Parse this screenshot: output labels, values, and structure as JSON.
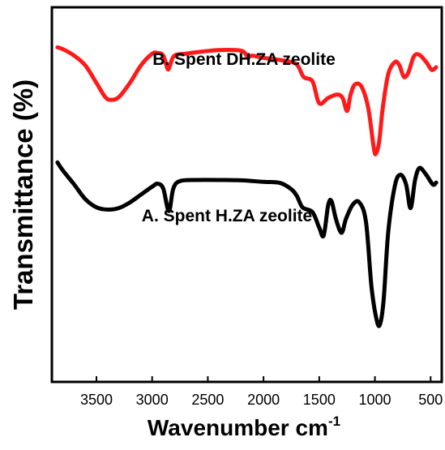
{
  "chart_data": {
    "type": "line",
    "title": "",
    "xlabel": "Wavenumber cm",
    "xlabel_sup": "-1",
    "ylabel": "Transmittance (%)",
    "x_reversed": true,
    "xlim": [
      3900,
      400
    ],
    "xticks": [
      3500,
      3000,
      2500,
      2000,
      1500,
      1000,
      500
    ],
    "xtick_labels": [
      "3500",
      "3000",
      "2500",
      "2000",
      "1500",
      "1000",
      "500"
    ],
    "y_ticks_shown": false,
    "ylim": [
      0,
      100
    ],
    "grid": false,
    "series": [
      {
        "name": "B. Spent DH.ZA zeolite",
        "color": "#ff1a1a",
        "points": [
          [
            3850,
            89.3
          ],
          [
            3800,
            88.8
          ],
          [
            3700,
            87.1
          ],
          [
            3600,
            84.5
          ],
          [
            3500,
            79.8
          ],
          [
            3420,
            76.0
          ],
          [
            3370,
            75.3
          ],
          [
            3300,
            76.0
          ],
          [
            3200,
            79.8
          ],
          [
            3100,
            84.5
          ],
          [
            3000,
            87.6
          ],
          [
            2950,
            87.8
          ],
          [
            2900,
            87.1
          ],
          [
            2860,
            83.5
          ],
          [
            2840,
            84.5
          ],
          [
            2800,
            87.1
          ],
          [
            2700,
            87.6
          ],
          [
            2600,
            88.0
          ],
          [
            2400,
            88.6
          ],
          [
            2200,
            88.4
          ],
          [
            2140,
            86.7
          ],
          [
            2100,
            87.1
          ],
          [
            2000,
            86.5
          ],
          [
            1800,
            85.7
          ],
          [
            1700,
            84.7
          ],
          [
            1640,
            81.4
          ],
          [
            1560,
            80.2
          ],
          [
            1500,
            74.4
          ],
          [
            1420,
            75.8
          ],
          [
            1340,
            76.7
          ],
          [
            1290,
            75.8
          ],
          [
            1250,
            72.3
          ],
          [
            1220,
            76.5
          ],
          [
            1180,
            79.4
          ],
          [
            1120,
            78.8
          ],
          [
            1060,
            73.1
          ],
          [
            1010,
            62.4
          ],
          [
            990,
            61.0
          ],
          [
            960,
            64.5
          ],
          [
            930,
            73.1
          ],
          [
            880,
            82.2
          ],
          [
            820,
            85.4
          ],
          [
            780,
            84.5
          ],
          [
            740,
            81.4
          ],
          [
            700,
            82.6
          ],
          [
            650,
            86.9
          ],
          [
            600,
            87.3
          ],
          [
            540,
            85.4
          ],
          [
            490,
            83.3
          ],
          [
            450,
            84.0
          ]
        ]
      },
      {
        "name": "A. Spent H.ZA zeolite",
        "color": "#000000",
        "points": [
          [
            3850,
            58.6
          ],
          [
            3800,
            56.4
          ],
          [
            3700,
            52.7
          ],
          [
            3600,
            48.8
          ],
          [
            3500,
            46.6
          ],
          [
            3400,
            46.0
          ],
          [
            3300,
            46.4
          ],
          [
            3200,
            47.9
          ],
          [
            3100,
            50.0
          ],
          [
            3000,
            52.1
          ],
          [
            2950,
            52.9
          ],
          [
            2900,
            51.6
          ],
          [
            2850,
            45.6
          ],
          [
            2810,
            51.6
          ],
          [
            2750,
            53.6
          ],
          [
            2600,
            53.9
          ],
          [
            2400,
            53.9
          ],
          [
            2200,
            53.8
          ],
          [
            2000,
            53.4
          ],
          [
            1850,
            53.1
          ],
          [
            1750,
            51.4
          ],
          [
            1700,
            49.6
          ],
          [
            1650,
            46.6
          ],
          [
            1560,
            45.3
          ],
          [
            1500,
            41.2
          ],
          [
            1460,
            39.1
          ],
          [
            1420,
            47.1
          ],
          [
            1390,
            48.3
          ],
          [
            1350,
            43.5
          ],
          [
            1300,
            39.8
          ],
          [
            1260,
            43.5
          ],
          [
            1200,
            47.3
          ],
          [
            1140,
            47.9
          ],
          [
            1080,
            42.7
          ],
          [
            1030,
            25.2
          ],
          [
            980,
            16.0
          ],
          [
            950,
            15.8
          ],
          [
            920,
            22.4
          ],
          [
            880,
            40.1
          ],
          [
            820,
            52.5
          ],
          [
            770,
            55.3
          ],
          [
            720,
            52.7
          ],
          [
            680,
            46.4
          ],
          [
            640,
            53.8
          ],
          [
            600,
            57.1
          ],
          [
            540,
            55.3
          ],
          [
            480,
            52.7
          ],
          [
            450,
            53.2
          ]
        ]
      }
    ]
  }
}
